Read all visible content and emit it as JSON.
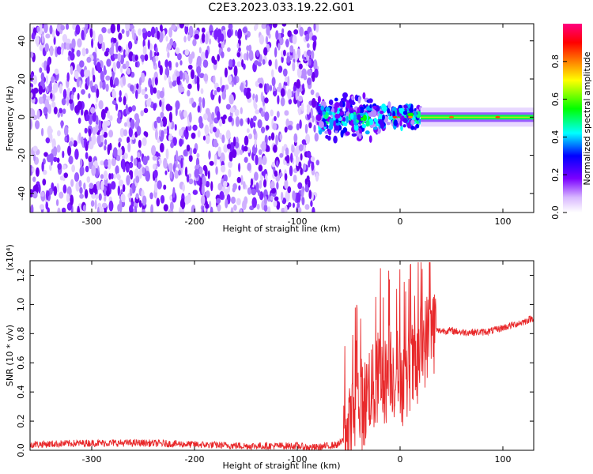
{
  "title": "C2E3.2023.033.19.22.G01",
  "chart_data": [
    {
      "type": "heatmap",
      "xlabel": "Height of straight line (km)",
      "ylabel": "Frequency (Hz)",
      "xlim": [
        -360,
        130
      ],
      "ylim": [
        -50,
        49
      ],
      "xticks": [
        -300,
        -200,
        -100,
        0,
        100
      ],
      "yticks": [
        -40,
        -20,
        0,
        20,
        40
      ],
      "colorbar": {
        "label": "Normalized spectral amplitude",
        "range": [
          0,
          1
        ],
        "ticks": [
          "0.0",
          "0.2",
          "0.4",
          "0.6",
          "0.8"
        ],
        "tick_values": [
          0.0,
          0.2,
          0.4,
          0.6,
          0.8
        ],
        "colors": [
          "#ffffff",
          "#7b00ff",
          "#0000ff",
          "#00ffff",
          "#00ff00",
          "#ffff00",
          "#ff8000",
          "#ff0000",
          "#ff0080"
        ]
      },
      "regions": [
        {
          "x": [
            -360,
            -80
          ],
          "freq": [
            -50,
            49
          ],
          "amplitude": "0.05-0.25"
        },
        {
          "x": [
            -80,
            20
          ],
          "freq": [
            -15,
            15
          ],
          "amplitude": "0.1-0.8"
        },
        {
          "x": [
            20,
            130
          ],
          "freq": [
            -2,
            2
          ],
          "amplitude": "0.3-0.6"
        }
      ]
    },
    {
      "type": "line",
      "xlabel": "Height of straight line (km)",
      "ylabel": "SNR (10 * v/v)",
      "yscale_label": "(x10⁴)",
      "xlim": [
        -360,
        130
      ],
      "ylim": [
        0,
        1.3
      ],
      "xticks": [
        -300,
        -200,
        -100,
        0,
        100
      ],
      "yticks": [
        "0.0",
        "0.2",
        "0.4",
        "0.6",
        "0.8",
        "1.0",
        "1.2"
      ],
      "ytick_values": [
        0.0,
        0.2,
        0.4,
        0.6,
        0.8,
        1.0,
        1.2
      ],
      "color": "#e8282a",
      "series": [
        {
          "x": [
            -360,
            -300,
            -250,
            -200,
            -150,
            -100,
            -90,
            -80,
            -60,
            -50,
            -45,
            -40,
            -35,
            -30,
            -25,
            -20,
            -15,
            -10,
            -5,
            0,
            5,
            10,
            15,
            20,
            25,
            30,
            35,
            40,
            50,
            60,
            70,
            80,
            90,
            100,
            110,
            120,
            130
          ],
          "values": [
            0.04,
            0.05,
            0.05,
            0.04,
            0.03,
            0.03,
            0.02,
            0.02,
            0.04,
            0.1,
            0.25,
            0.35,
            0.3,
            0.45,
            0.4,
            0.55,
            0.45,
            0.6,
            0.5,
            0.55,
            0.4,
            0.6,
            0.5,
            0.7,
            0.75,
            0.85,
            0.82,
            0.82,
            0.82,
            0.81,
            0.81,
            0.81,
            0.82,
            0.84,
            0.86,
            0.88,
            0.91
          ]
        }
      ]
    }
  ]
}
